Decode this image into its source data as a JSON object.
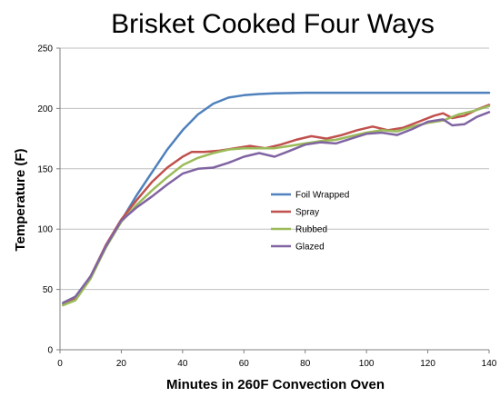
{
  "chart_data": {
    "type": "line",
    "title": "Brisket Cooked Four Ways",
    "xlabel": "Minutes in 260F Convection Oven",
    "ylabel": "Temperature (F)",
    "xlim": [
      0,
      140
    ],
    "ylim": [
      0,
      250
    ],
    "x_ticks": [
      0,
      20,
      40,
      60,
      80,
      100,
      120,
      140
    ],
    "y_ticks": [
      0,
      50,
      100,
      150,
      200,
      250
    ],
    "grid": "horizontal",
    "legend_position": "center",
    "series": [
      {
        "name": "Foil Wrapped",
        "color": "#4f81bd",
        "points": [
          [
            1,
            38
          ],
          [
            5,
            44
          ],
          [
            10,
            60
          ],
          [
            15,
            85
          ],
          [
            20,
            107
          ],
          [
            25,
            128
          ],
          [
            30,
            147
          ],
          [
            35,
            166
          ],
          [
            40,
            182
          ],
          [
            45,
            195
          ],
          [
            50,
            204
          ],
          [
            55,
            209
          ],
          [
            60,
            211
          ],
          [
            65,
            212
          ],
          [
            70,
            212.5
          ],
          [
            80,
            213
          ],
          [
            90,
            213
          ],
          [
            100,
            213
          ],
          [
            110,
            213
          ],
          [
            120,
            213
          ],
          [
            130,
            213
          ],
          [
            140,
            213
          ]
        ]
      },
      {
        "name": "Spray",
        "color": "#c0504d",
        "points": [
          [
            1,
            37
          ],
          [
            5,
            42
          ],
          [
            10,
            61
          ],
          [
            15,
            87
          ],
          [
            20,
            108
          ],
          [
            25,
            124
          ],
          [
            30,
            139
          ],
          [
            35,
            151
          ],
          [
            40,
            160
          ],
          [
            43,
            164
          ],
          [
            47,
            164
          ],
          [
            52,
            165
          ],
          [
            57,
            167
          ],
          [
            62,
            169
          ],
          [
            67,
            167
          ],
          [
            72,
            170
          ],
          [
            77,
            174
          ],
          [
            82,
            177
          ],
          [
            87,
            175
          ],
          [
            92,
            178
          ],
          [
            97,
            182
          ],
          [
            102,
            185
          ],
          [
            107,
            182
          ],
          [
            112,
            184
          ],
          [
            117,
            189
          ],
          [
            122,
            194
          ],
          [
            125,
            196
          ],
          [
            128,
            192
          ],
          [
            132,
            194
          ],
          [
            136,
            199
          ],
          [
            140,
            203
          ]
        ]
      },
      {
        "name": "Rubbed",
        "color": "#9bbb59",
        "points": [
          [
            1,
            37
          ],
          [
            5,
            41
          ],
          [
            10,
            59
          ],
          [
            15,
            85
          ],
          [
            20,
            106
          ],
          [
            25,
            120
          ],
          [
            30,
            132
          ],
          [
            35,
            143
          ],
          [
            40,
            153
          ],
          [
            45,
            159
          ],
          [
            50,
            163
          ],
          [
            55,
            166
          ],
          [
            60,
            167
          ],
          [
            65,
            167
          ],
          [
            70,
            167
          ],
          [
            75,
            169
          ],
          [
            80,
            171
          ],
          [
            85,
            173
          ],
          [
            90,
            174
          ],
          [
            95,
            177
          ],
          [
            100,
            180
          ],
          [
            105,
            182
          ],
          [
            110,
            181
          ],
          [
            115,
            185
          ],
          [
            120,
            188
          ],
          [
            125,
            190
          ],
          [
            130,
            195
          ],
          [
            135,
            198
          ],
          [
            140,
            202
          ]
        ]
      },
      {
        "name": "Glazed",
        "color": "#8064a2",
        "points": [
          [
            1,
            39
          ],
          [
            5,
            44
          ],
          [
            10,
            61
          ],
          [
            15,
            86
          ],
          [
            20,
            107
          ],
          [
            25,
            118
          ],
          [
            30,
            127
          ],
          [
            35,
            137
          ],
          [
            40,
            146
          ],
          [
            45,
            150
          ],
          [
            50,
            151
          ],
          [
            55,
            155
          ],
          [
            60,
            160
          ],
          [
            65,
            163
          ],
          [
            70,
            160
          ],
          [
            75,
            165
          ],
          [
            80,
            170
          ],
          [
            85,
            172
          ],
          [
            90,
            171
          ],
          [
            95,
            175
          ],
          [
            100,
            179
          ],
          [
            105,
            180
          ],
          [
            110,
            178
          ],
          [
            115,
            183
          ],
          [
            120,
            189
          ],
          [
            125,
            191
          ],
          [
            128,
            186
          ],
          [
            132,
            187
          ],
          [
            136,
            193
          ],
          [
            140,
            197
          ]
        ]
      }
    ]
  }
}
